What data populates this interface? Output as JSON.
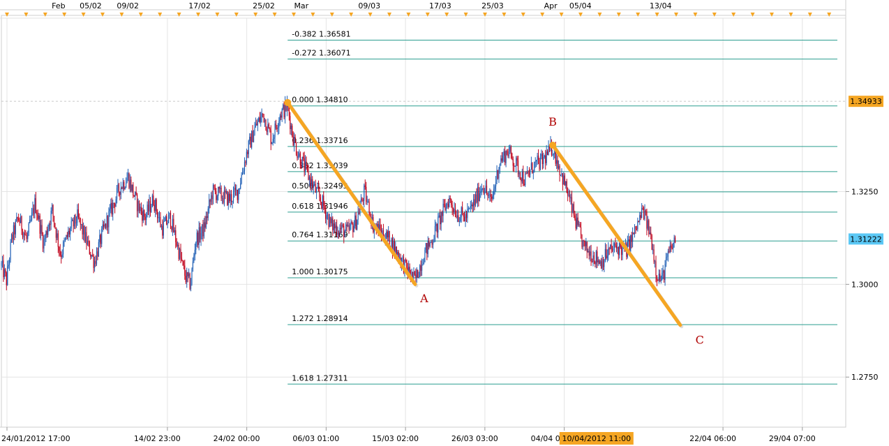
{
  "chart_data": {
    "type": "candlestick",
    "symbol_colors": {
      "up": "#1f5fb5",
      "down": "#c0001a",
      "background": "#ffffff",
      "grid": "#e4e4e4",
      "fib_line": "#2a9d8f",
      "trend": "#f5a623",
      "marker": "#f5a623",
      "label_red": "#b00000",
      "price_tag_high": "#f5a623",
      "price_tag_current": "#5bc8f5"
    },
    "y_axis": {
      "min": 1.2615,
      "max": 1.3725,
      "ticks": [
        {
          "value": 1.325,
          "label": "1.3250"
        },
        {
          "value": 1.3,
          "label": "1.3000"
        },
        {
          "value": 1.275,
          "label": "1.2750"
        }
      ]
    },
    "x_axis_labels": [
      {
        "label": "24/01/2012 17:00",
        "frac": 0.0
      },
      {
        "label": "14/02 23:00",
        "frac": 0.19
      },
      {
        "label": "24/02 00:00",
        "frac": 0.284
      },
      {
        "label": "06/03 01:00",
        "frac": 0.378
      },
      {
        "label": "15/03 02:00",
        "frac": 0.472
      },
      {
        "label": "26/03 03:00",
        "frac": 0.566
      },
      {
        "label": "04/04 04:00",
        "frac": 0.66
      },
      {
        "label": "22/04 06:00",
        "frac": 0.848
      },
      {
        "label": "29/04 07:00",
        "frac": 0.942
      }
    ],
    "highlighted_time": "10/04/2012 11:00",
    "top_labels": [
      {
        "label": "Feb",
        "frac": 0.058
      },
      {
        "label": "05/02",
        "frac": 0.091
      },
      {
        "label": "09/02",
        "frac": 0.135
      },
      {
        "label": "17/02",
        "frac": 0.22
      },
      {
        "label": "25/02",
        "frac": 0.296
      },
      {
        "label": "Mar",
        "frac": 0.345
      },
      {
        "label": "09/03",
        "frac": 0.421
      },
      {
        "label": "17/03",
        "frac": 0.505
      },
      {
        "label": "25/03",
        "frac": 0.567
      },
      {
        "label": "Apr",
        "frac": 0.641
      },
      {
        "label": "05/04",
        "frac": 0.671
      },
      {
        "label": "13/04",
        "frac": 0.766
      }
    ],
    "fib_levels": [
      {
        "ratio": "-0.382",
        "price": 1.36581,
        "label": "-0.382 1.36581"
      },
      {
        "ratio": "-0.272",
        "price": 1.36071,
        "label": "-0.272 1.36071"
      },
      {
        "ratio": "0.000",
        "price": 1.3481,
        "label": "0.000 1.34810"
      },
      {
        "ratio": "0.236",
        "price": 1.33716,
        "label": "0.236 1.33716"
      },
      {
        "ratio": "0.382",
        "price": 1.33039,
        "label": "0.382 1.33039"
      },
      {
        "ratio": "0.500",
        "price": 1.32493,
        "label": "0.500 1.32493"
      },
      {
        "ratio": "0.618",
        "price": 1.31946,
        "label": "0.618 1.31946"
      },
      {
        "ratio": "0.764",
        "price": 1.31169,
        "label": "0.764 1.31169"
      },
      {
        "ratio": "1.000",
        "price": 1.30175,
        "label": "1.000 1.30175"
      },
      {
        "ratio": "1.272",
        "price": 1.28914,
        "label": "1.272 1.28914"
      },
      {
        "ratio": "1.618",
        "price": 1.27311,
        "label": "1.618 1.27311"
      }
    ],
    "price_tags": [
      {
        "label": "1.34933",
        "value": 1.34933,
        "kind": "high"
      },
      {
        "label": "1.31222",
        "value": 1.31222,
        "kind": "current"
      }
    ],
    "trend_lines": [
      {
        "from": {
          "frac": 0.339,
          "price": 1.349
        },
        "to": {
          "frac": 0.49,
          "price": 1.3
        }
      },
      {
        "from": {
          "frac": 0.653,
          "price": 1.3375
        },
        "to": {
          "frac": 0.804,
          "price": 1.289
        }
      }
    ],
    "wave_labels": [
      {
        "text": "A",
        "frac": 0.496,
        "price": 1.2952
      },
      {
        "text": "B",
        "frac": 0.648,
        "price": 1.3428
      },
      {
        "text": "C",
        "frac": 0.822,
        "price": 1.284
      }
    ],
    "price_path": [
      [
        0.0,
        1.305
      ],
      [
        0.006,
        1.301
      ],
      [
        0.012,
        1.312
      ],
      [
        0.02,
        1.318
      ],
      [
        0.03,
        1.312
      ],
      [
        0.04,
        1.322
      ],
      [
        0.05,
        1.311
      ],
      [
        0.06,
        1.32
      ],
      [
        0.07,
        1.308
      ],
      [
        0.08,
        1.314
      ],
      [
        0.09,
        1.318
      ],
      [
        0.1,
        1.312
      ],
      [
        0.11,
        1.306
      ],
      [
        0.12,
        1.314
      ],
      [
        0.13,
        1.32
      ],
      [
        0.14,
        1.326
      ],
      [
        0.15,
        1.329
      ],
      [
        0.16,
        1.322
      ],
      [
        0.17,
        1.318
      ],
      [
        0.18,
        1.323
      ],
      [
        0.19,
        1.315
      ],
      [
        0.2,
        1.318
      ],
      [
        0.21,
        1.309
      ],
      [
        0.218,
        1.302
      ],
      [
        0.224,
        1.3
      ],
      [
        0.23,
        1.312
      ],
      [
        0.24,
        1.315
      ],
      [
        0.25,
        1.325
      ],
      [
        0.26,
        1.324
      ],
      [
        0.27,
        1.323
      ],
      [
        0.28,
        1.325
      ],
      [
        0.29,
        1.335
      ],
      [
        0.3,
        1.342
      ],
      [
        0.31,
        1.346
      ],
      [
        0.32,
        1.339
      ],
      [
        0.33,
        1.346
      ],
      [
        0.339,
        1.348
      ],
      [
        0.345,
        1.34
      ],
      [
        0.35,
        1.336
      ],
      [
        0.36,
        1.331
      ],
      [
        0.37,
        1.326
      ],
      [
        0.38,
        1.322
      ],
      [
        0.39,
        1.316
      ],
      [
        0.4,
        1.315
      ],
      [
        0.41,
        1.314
      ],
      [
        0.42,
        1.317
      ],
      [
        0.43,
        1.325
      ],
      [
        0.44,
        1.316
      ],
      [
        0.45,
        1.314
      ],
      [
        0.46,
        1.312
      ],
      [
        0.47,
        1.308
      ],
      [
        0.48,
        1.304
      ],
      [
        0.49,
        1.301
      ],
      [
        0.5,
        1.308
      ],
      [
        0.51,
        1.312
      ],
      [
        0.52,
        1.318
      ],
      [
        0.53,
        1.323
      ],
      [
        0.54,
        1.319
      ],
      [
        0.55,
        1.318
      ],
      [
        0.56,
        1.322
      ],
      [
        0.57,
        1.327
      ],
      [
        0.58,
        1.322
      ],
      [
        0.59,
        1.333
      ],
      [
        0.6,
        1.336
      ],
      [
        0.61,
        1.332
      ],
      [
        0.62,
        1.328
      ],
      [
        0.63,
        1.332
      ],
      [
        0.64,
        1.333
      ],
      [
        0.653,
        1.337
      ],
      [
        0.66,
        1.332
      ],
      [
        0.67,
        1.325
      ],
      [
        0.68,
        1.317
      ],
      [
        0.69,
        1.31
      ],
      [
        0.7,
        1.308
      ],
      [
        0.71,
        1.306
      ],
      [
        0.72,
        1.309
      ],
      [
        0.73,
        1.31
      ],
      [
        0.74,
        1.309
      ],
      [
        0.75,
        1.314
      ],
      [
        0.76,
        1.32
      ],
      [
        0.77,
        1.312
      ],
      [
        0.776,
        1.303
      ],
      [
        0.782,
        1.301
      ],
      [
        0.79,
        1.308
      ],
      [
        0.798,
        1.312
      ]
    ]
  }
}
